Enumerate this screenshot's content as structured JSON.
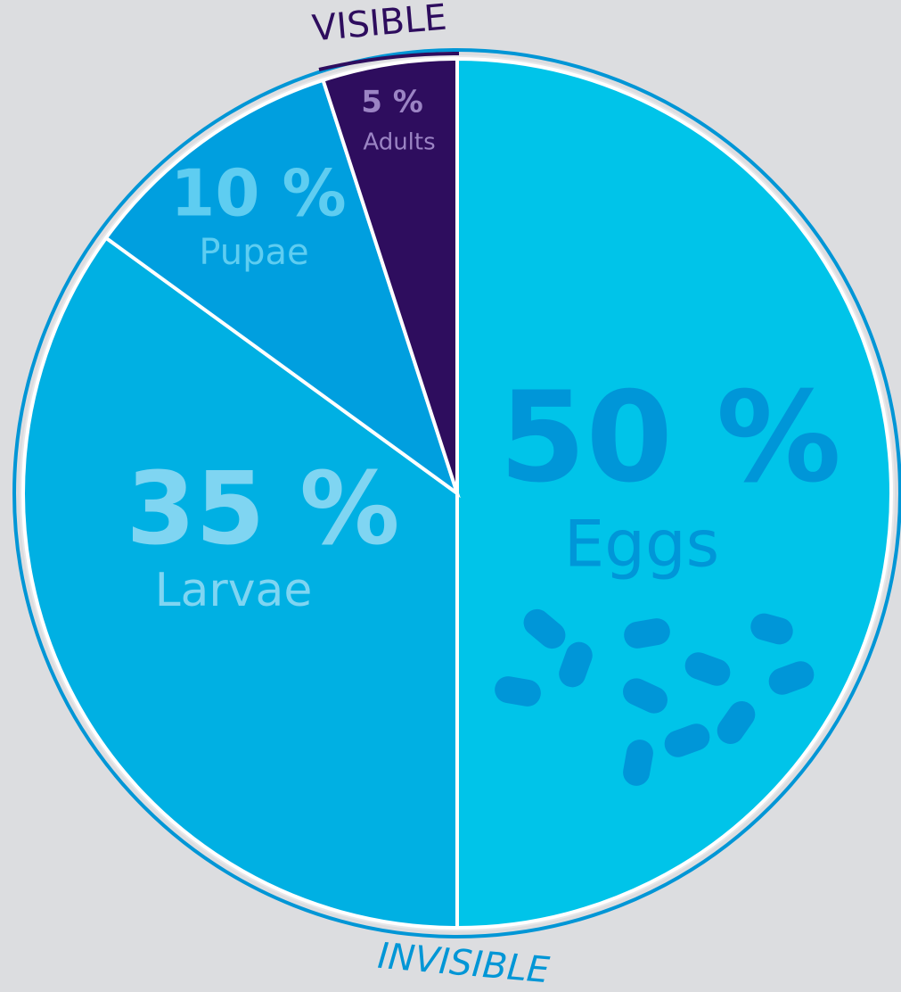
{
  "chart_data": {
    "type": "pie",
    "categories": [
      "Eggs",
      "Larvae",
      "Pupae",
      "Adults"
    ],
    "values": [
      50,
      35,
      10,
      5
    ],
    "value_labels": [
      "50 %",
      "35 %",
      "10 %",
      "5 %"
    ],
    "colors": [
      "#00c4e9",
      "#00b0e3",
      "#009fdf",
      "#2e0d5e"
    ],
    "label_colors": [
      "#0096d8",
      "#7fd5f2",
      "#5ecdf1",
      "#9b84c4"
    ],
    "annotations": [
      "VISIBLE",
      "INVISIBLE"
    ]
  }
}
